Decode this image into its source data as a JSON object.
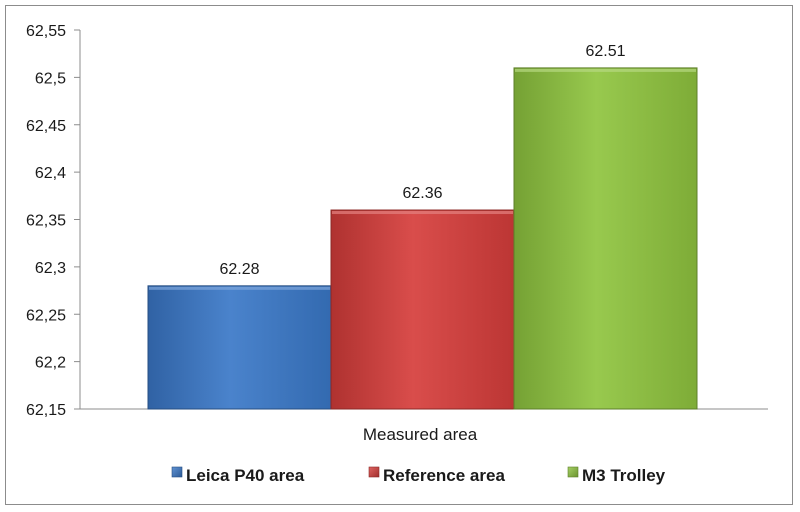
{
  "chart_data": {
    "type": "bar",
    "xlabel": "Measured area",
    "ylim": [
      62.15,
      62.55
    ],
    "yticks": [
      {
        "value": 62.15,
        "label": "62,15"
      },
      {
        "value": 62.2,
        "label": "62,2"
      },
      {
        "value": 62.25,
        "label": "62,25"
      },
      {
        "value": 62.3,
        "label": "62,3"
      },
      {
        "value": 62.35,
        "label": "62,35"
      },
      {
        "value": 62.4,
        "label": "62,4"
      },
      {
        "value": 62.45,
        "label": "62,45"
      },
      {
        "value": 62.5,
        "label": "62,5"
      },
      {
        "value": 62.55,
        "label": "62,55"
      }
    ],
    "grid": false,
    "legend_position": "bottom",
    "series": [
      {
        "name": "Leica P40 area",
        "values": [
          62.28
        ],
        "label": "62.28",
        "color": "#3a78c8"
      },
      {
        "name": "Reference area",
        "values": [
          62.36
        ],
        "label": "62.36",
        "color": "#d63d3b"
      },
      {
        "name": "M3 Trolley",
        "values": [
          62.51
        ],
        "label": "62.51",
        "color": "#8fc43f"
      }
    ]
  }
}
